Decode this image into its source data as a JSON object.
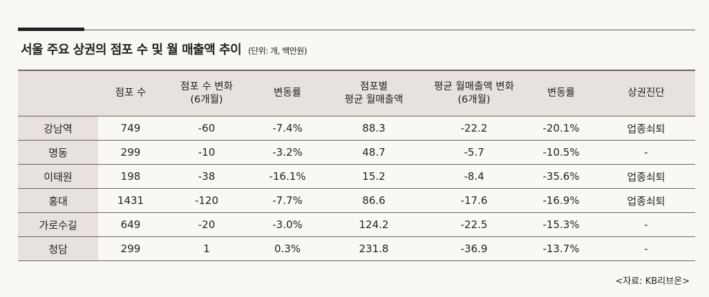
{
  "title": "서울 주요 상권의 점포 수 및 월 매출액 추이",
  "unit": "(단위: 개, 백만원)",
  "headers": [
    [
      ""
    ],
    [
      "점포 수"
    ],
    [
      "점포 수 변화",
      "(6개월)"
    ],
    [
      "변동률"
    ],
    [
      "점포별",
      "평균 월매출액"
    ],
    [
      "평균 월매출액 변화",
      "(6개월)"
    ],
    [
      "변동률"
    ],
    [
      "상권진단"
    ]
  ],
  "rows": [
    [
      "강남역",
      "749",
      "-60",
      "-7.4%",
      "88.3",
      "-22.2",
      "-20.1%",
      "업종쇠퇴"
    ],
    [
      "명동",
      "299",
      "-10",
      "-3.2%",
      "48.7",
      "-5.7",
      "-10.5%",
      "-"
    ],
    [
      "이태원",
      "198",
      "-38",
      "-16.1%",
      "15.2",
      "-8.4",
      "-35.6%",
      "업종쇠퇴"
    ],
    [
      "홍대",
      "1431",
      "-120",
      "-7.7%",
      "86.6",
      "-17.6",
      "-16.9%",
      "업종쇠퇴"
    ],
    [
      "가로수길",
      "649",
      "-20",
      "-3.0%",
      "124.2",
      "-22.5",
      "-15.3%",
      "-"
    ],
    [
      "청담",
      "299",
      "1",
      "0.3%",
      "231.8",
      "-36.9",
      "-13.7%",
      "-"
    ]
  ],
  "source": "<자료: KB리브온>"
}
